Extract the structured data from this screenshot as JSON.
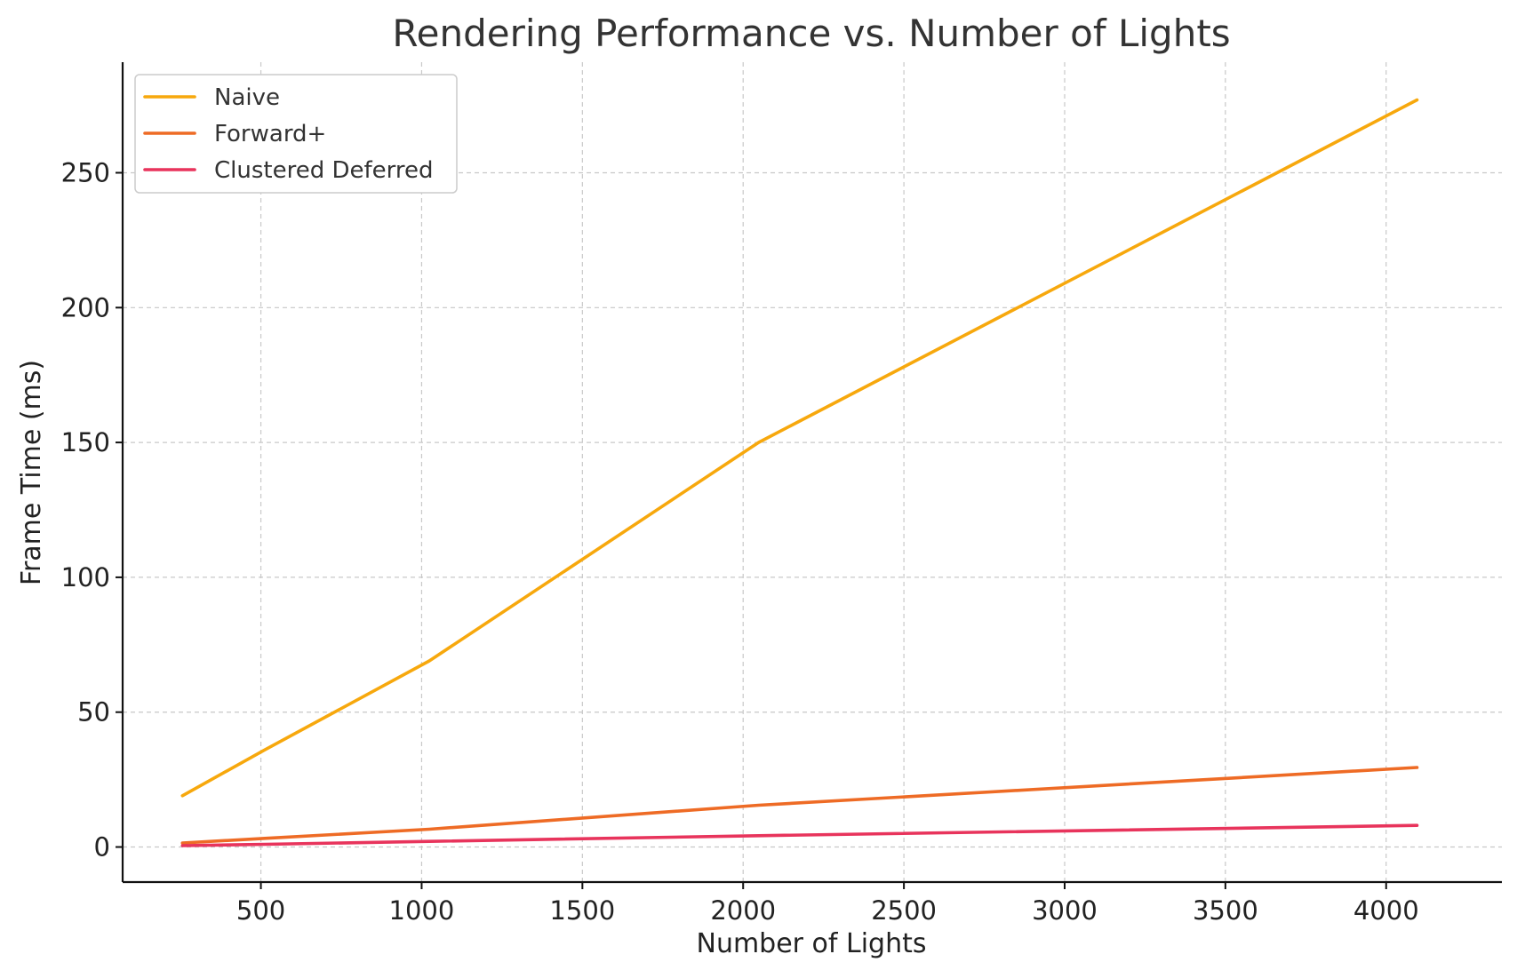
{
  "chart_data": {
    "type": "line",
    "title": "Rendering Performance vs. Number of Lights",
    "xlabel": "Number of Lights",
    "ylabel": "Frame Time (ms)",
    "x": [
      256,
      512,
      1024,
      2048,
      4096
    ],
    "xlim": [
      70,
      4360
    ],
    "ylim": [
      -13,
      291
    ],
    "xticks": [
      500,
      1000,
      1500,
      2000,
      2500,
      3000,
      3500,
      4000
    ],
    "yticks": [
      0,
      50,
      100,
      150,
      200,
      250
    ],
    "grid": true,
    "legend_position": "top-left",
    "series": [
      {
        "name": "Naive",
        "color": "#F7A80D",
        "values": [
          19,
          36,
          69,
          150,
          277
        ]
      },
      {
        "name": "Forward+",
        "color": "#EE6B25",
        "values": [
          1.5,
          3.2,
          6.6,
          15.5,
          29.5
        ]
      },
      {
        "name": "Clustered Deferred",
        "color": "#E8345C",
        "values": [
          0.5,
          1.0,
          2.1,
          4.2,
          8.0
        ]
      }
    ]
  }
}
